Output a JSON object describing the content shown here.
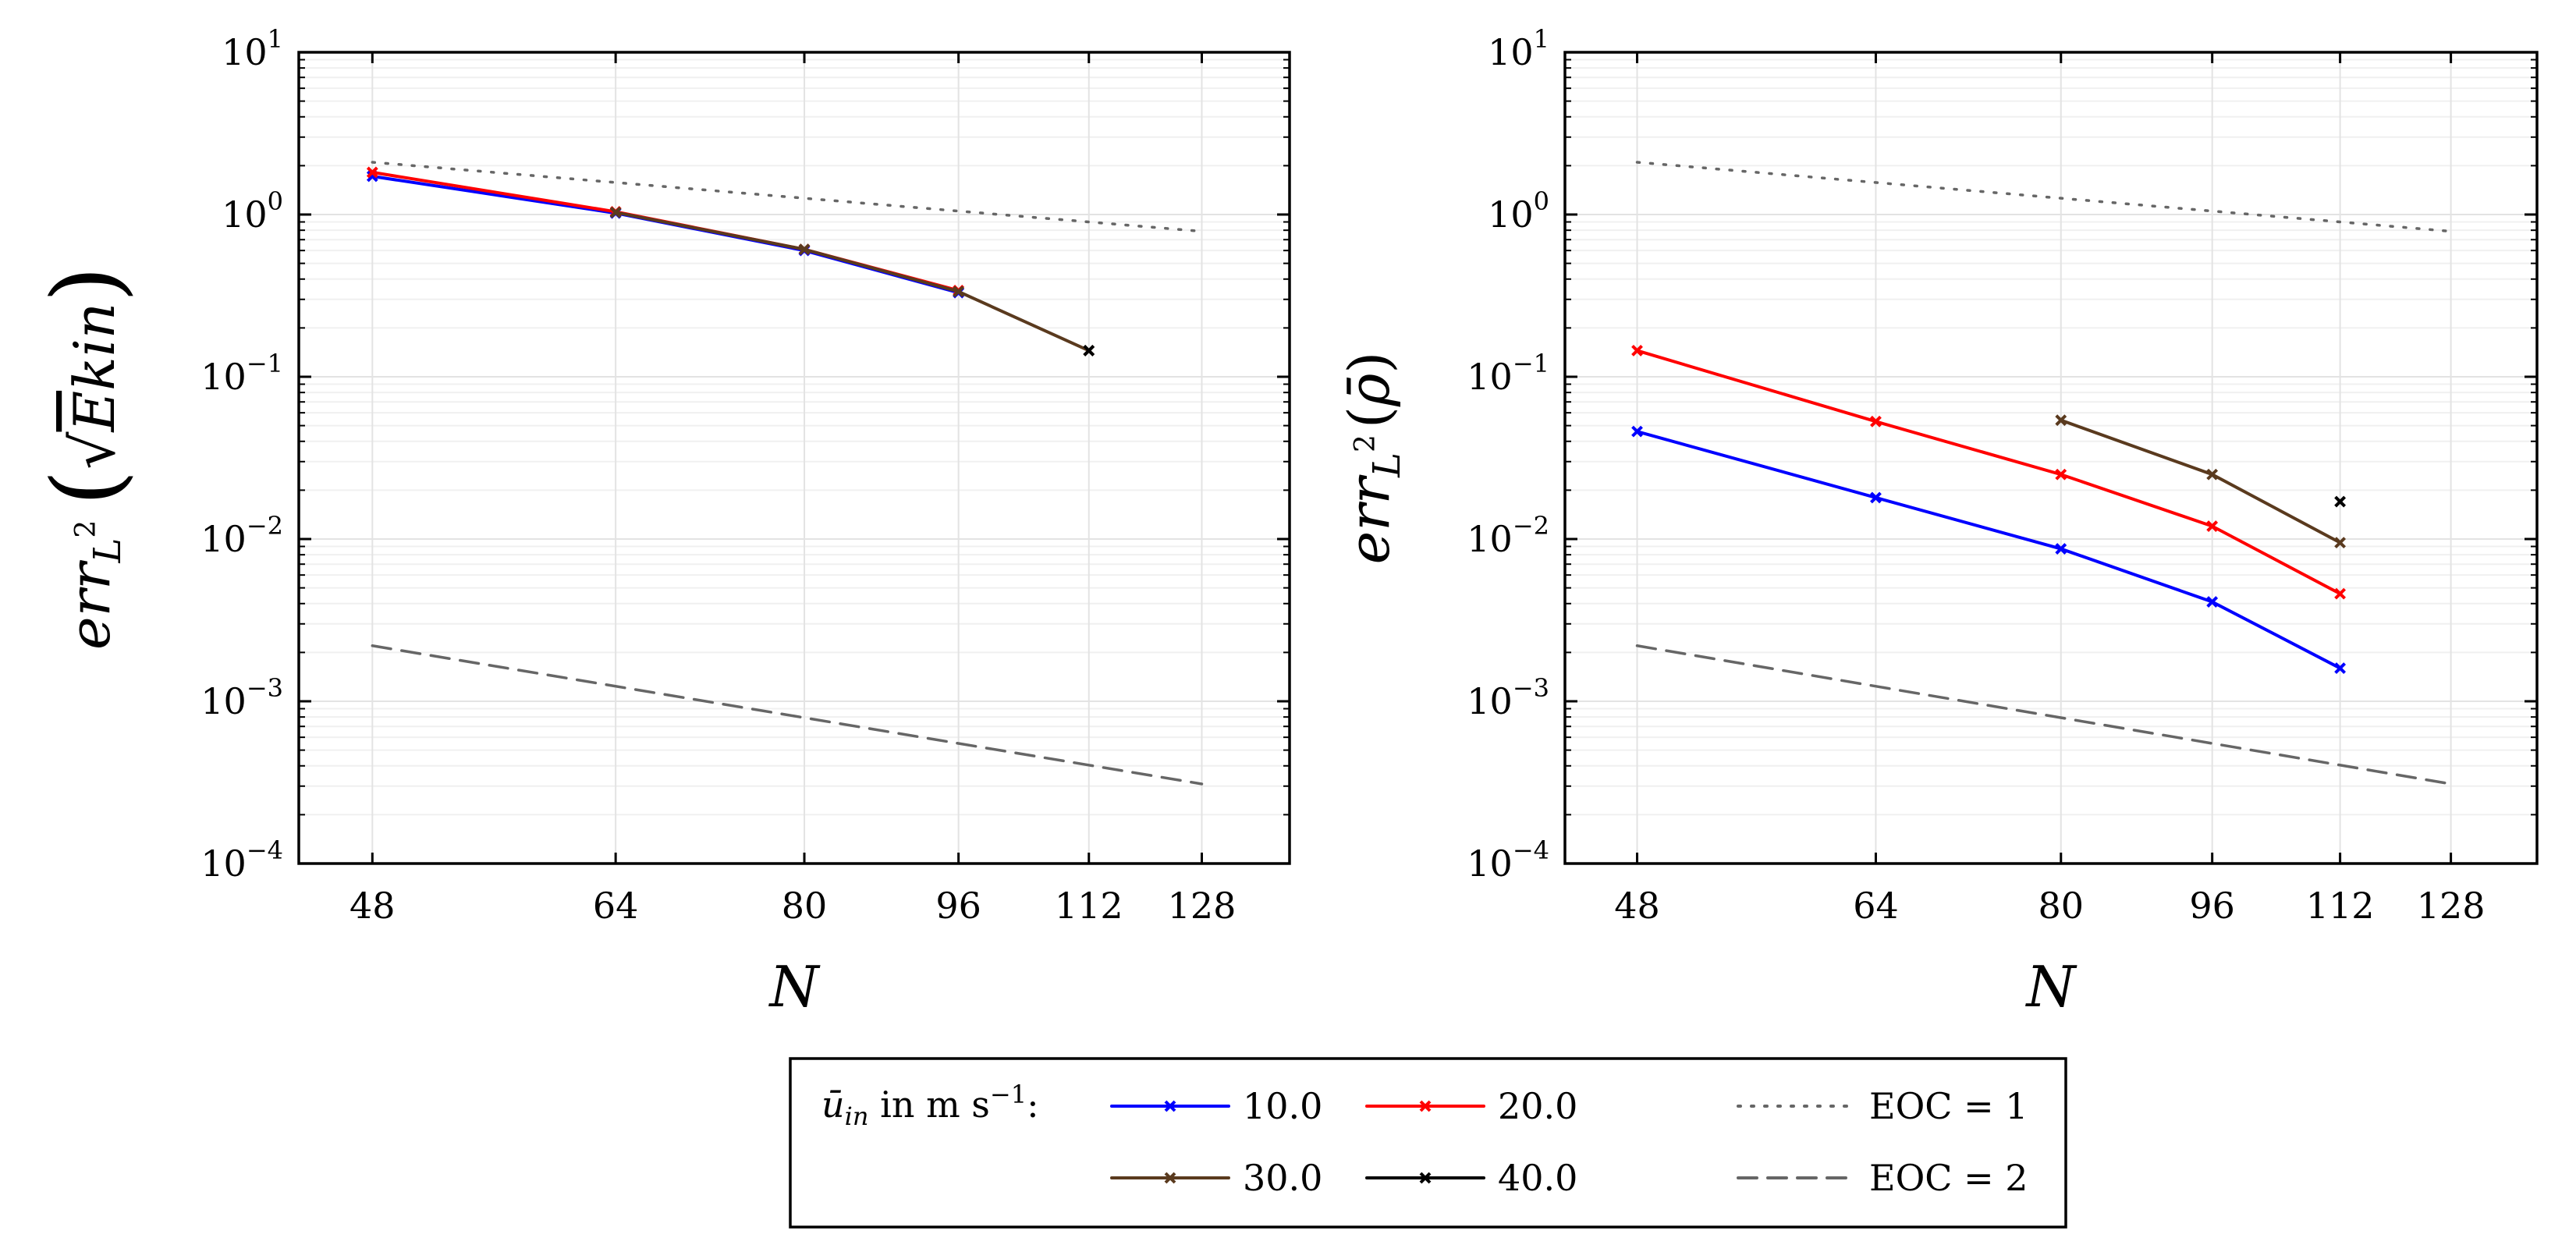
{
  "chart_data": [
    {
      "type": "line",
      "xscale": "log",
      "yscale": "log",
      "xlabel": "N",
      "ylabel": "err_{L^2}(√Ē_kin)",
      "ylabel_parts": {
        "base": "err",
        "sub": "L",
        "sup": "2",
        "arg_bar": "E",
        "arg_sub": "kin"
      },
      "xlim": [
        44,
        142
      ],
      "ylim": [
        0.0001,
        10
      ],
      "xticks": [
        "48",
        "64",
        "80",
        "96",
        "112",
        "128"
      ],
      "xtick_values": [
        48,
        64,
        80,
        96,
        112,
        128
      ],
      "yticks": [
        {
          "base": "10",
          "exp": "1",
          "value": 10
        },
        {
          "base": "10",
          "exp": "0",
          "value": 1
        },
        {
          "base": "10",
          "exp": "−1",
          "value": 0.1
        },
        {
          "base": "10",
          "exp": "−2",
          "value": 0.01
        },
        {
          "base": "10",
          "exp": "−3",
          "value": 0.001
        },
        {
          "base": "10",
          "exp": "−4",
          "value": 0.0001
        }
      ],
      "grid": true,
      "series": [
        {
          "name": "10.0",
          "color": "#0000ff",
          "x": [
            48,
            64,
            80,
            96
          ],
          "y": [
            1.72,
            1.02,
            0.6,
            0.33
          ]
        },
        {
          "name": "20.0",
          "color": "#ff0000",
          "x": [
            48,
            64,
            80,
            96
          ],
          "y": [
            1.82,
            1.04,
            0.61,
            0.34
          ]
        },
        {
          "name": "30.0",
          "color": "#5a3a1e",
          "x": [
            64,
            80,
            96,
            112
          ],
          "y": [
            1.03,
            0.61,
            0.335,
            0.145
          ]
        },
        {
          "name": "40.0",
          "color": "#000000",
          "x": [
            112
          ],
          "y": [
            0.145
          ]
        }
      ],
      "reference_lines": [
        {
          "name": "EOC = 1",
          "style": "dotted",
          "color": "#666666",
          "x": [
            48,
            128
          ],
          "y": [
            2.1,
            0.7875
          ]
        },
        {
          "name": "EOC = 2",
          "style": "dashed",
          "color": "#666666",
          "x": [
            48,
            128
          ],
          "y": [
            0.0022,
            0.0003094
          ]
        }
      ]
    },
    {
      "type": "line",
      "xscale": "log",
      "yscale": "log",
      "xlabel": "N",
      "ylabel": "err_{L^2}(ρ̄)",
      "ylabel_parts": {
        "base": "err",
        "sub": "L",
        "sup": "2",
        "arg": "ρ̄"
      },
      "xlim": [
        44,
        142
      ],
      "ylim": [
        0.0001,
        10
      ],
      "xticks": [
        "48",
        "64",
        "80",
        "96",
        "112",
        "128"
      ],
      "xtick_values": [
        48,
        64,
        80,
        96,
        112,
        128
      ],
      "yticks": [
        {
          "base": "10",
          "exp": "1",
          "value": 10
        },
        {
          "base": "10",
          "exp": "0",
          "value": 1
        },
        {
          "base": "10",
          "exp": "−1",
          "value": 0.1
        },
        {
          "base": "10",
          "exp": "−2",
          "value": 0.01
        },
        {
          "base": "10",
          "exp": "−3",
          "value": 0.001
        },
        {
          "base": "10",
          "exp": "−4",
          "value": 0.0001
        }
      ],
      "grid": true,
      "series": [
        {
          "name": "10.0",
          "color": "#0000ff",
          "x": [
            48,
            64,
            80,
            96,
            112
          ],
          "y": [
            0.046,
            0.018,
            0.0087,
            0.0041,
            0.0016
          ]
        },
        {
          "name": "20.0",
          "color": "#ff0000",
          "x": [
            48,
            64,
            80,
            96,
            112
          ],
          "y": [
            0.145,
            0.053,
            0.025,
            0.012,
            0.0046
          ]
        },
        {
          "name": "30.0",
          "color": "#5a3a1e",
          "x": [
            80,
            96,
            112
          ],
          "y": [
            0.054,
            0.025,
            0.0095
          ]
        },
        {
          "name": "40.0",
          "color": "#000000",
          "x": [
            112
          ],
          "y": [
            0.017
          ]
        }
      ],
      "reference_lines": [
        {
          "name": "EOC = 1",
          "style": "dotted",
          "color": "#666666",
          "x": [
            48,
            128
          ],
          "y": [
            2.1,
            0.7875
          ]
        },
        {
          "name": "EOC = 2",
          "style": "dashed",
          "color": "#666666",
          "x": [
            48,
            128
          ],
          "y": [
            0.0022,
            0.0003094
          ]
        }
      ]
    }
  ],
  "legend": {
    "title_symbol": "ū",
    "title_sub": "in",
    "title_text": " in m s",
    "title_exp": "−1",
    "title_colon": ":",
    "entries": [
      {
        "label": "10.0",
        "color": "#0000ff",
        "style": "solid"
      },
      {
        "label": "20.0",
        "color": "#ff0000",
        "style": "solid"
      },
      {
        "label": "EOC = 1",
        "color": "#666666",
        "style": "dotted"
      },
      {
        "label": "30.0",
        "color": "#5a3a1e",
        "style": "solid"
      },
      {
        "label": "40.0",
        "color": "#000000",
        "style": "solid"
      },
      {
        "label": "EOC = 2",
        "color": "#666666",
        "style": "dashed"
      }
    ]
  }
}
